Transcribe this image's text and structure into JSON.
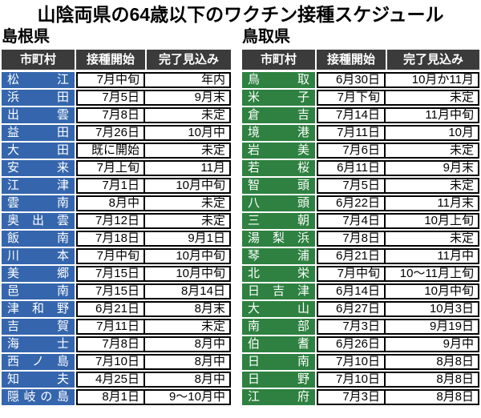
{
  "title": "山陰両県の64歳以下のワクチン接種スケジュール",
  "colors": {
    "header_bg": "#3b3b3b",
    "header_text": "#ffffff",
    "cell_border": "#000000",
    "background": "#ffffff",
    "shimane_accent": "#3566ad",
    "tottori_accent": "#2e8140"
  },
  "chart_data": [
    {
      "type": "table",
      "prefecture": "島根県",
      "accent_color": "#3566ad",
      "columns": [
        "市町村",
        "接種開始",
        "完了見込み"
      ],
      "rows": [
        [
          "松江",
          "7月中旬",
          "年内"
        ],
        [
          "浜田",
          "7月5日",
          "9月末"
        ],
        [
          "出雲",
          "7月8日",
          "未定"
        ],
        [
          "益田",
          "7月26日",
          "10月中"
        ],
        [
          "大田",
          "既に開始",
          "未定"
        ],
        [
          "安来",
          "7月上旬",
          "11月"
        ],
        [
          "江津",
          "7月1日",
          "10月中旬"
        ],
        [
          "雲南",
          "8月中",
          "未定"
        ],
        [
          "奥出雲",
          "7月12日",
          "未定"
        ],
        [
          "飯南",
          "7月18日",
          "9月1日"
        ],
        [
          "川本",
          "7月中旬",
          "10月中旬"
        ],
        [
          "美郷",
          "7月15日",
          "10月中旬"
        ],
        [
          "邑南",
          "7月15日",
          "8月14日"
        ],
        [
          "津和野",
          "6月21日",
          "8月末"
        ],
        [
          "吉賀",
          "7月11日",
          "未定"
        ],
        [
          "海士",
          "7月8日",
          "8月中"
        ],
        [
          "西ノ島",
          "7月10日",
          "8月中"
        ],
        [
          "知夫",
          "4月25日",
          "8月中"
        ],
        [
          "隠岐の島",
          "8月1日",
          "9〜10月中"
        ]
      ]
    },
    {
      "type": "table",
      "prefecture": "鳥取県",
      "accent_color": "#2e8140",
      "columns": [
        "市町村",
        "接種開始",
        "完了見込み"
      ],
      "rows": [
        [
          "鳥取",
          "6月30日",
          "10月か11月"
        ],
        [
          "米子",
          "7月下旬",
          "未定"
        ],
        [
          "倉吉",
          "7月14日",
          "11月中旬"
        ],
        [
          "境港",
          "7月11日",
          "10月"
        ],
        [
          "岩美",
          "7月6日",
          "未定"
        ],
        [
          "若桜",
          "6月11日",
          "9月末"
        ],
        [
          "智頭",
          "7月5日",
          "未定"
        ],
        [
          "八頭",
          "6月22日",
          "11月末"
        ],
        [
          "三朝",
          "7月4日",
          "10月上旬"
        ],
        [
          "湯梨浜",
          "7月8日",
          "未定"
        ],
        [
          "琴浦",
          "6月21日",
          "11月中"
        ],
        [
          "北栄",
          "7月中旬",
          "10〜11月上旬"
        ],
        [
          "日吉津",
          "6月14日",
          "10月中旬"
        ],
        [
          "大山",
          "6月27日",
          "10月3日"
        ],
        [
          "南部",
          "7月3日",
          "9月19日"
        ],
        [
          "伯耆",
          "6月26日",
          "9月中"
        ],
        [
          "日南",
          "7月10日",
          "8月8日"
        ],
        [
          "日野",
          "7月10日",
          "8月8日"
        ],
        [
          "江府",
          "7月3日",
          "8月8日"
        ]
      ]
    }
  ]
}
